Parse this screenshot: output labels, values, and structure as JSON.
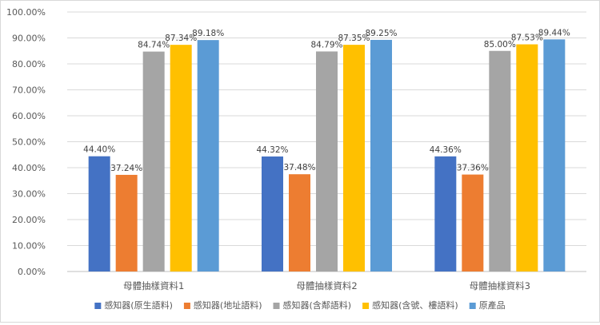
{
  "chart_data": {
    "type": "bar",
    "title": "",
    "xlabel": "",
    "ylabel": "",
    "categories": [
      "母體抽樣資料1",
      "母體抽樣資料2",
      "母體抽樣資料3"
    ],
    "ylim": [
      0,
      100
    ],
    "y_tick_step": 10,
    "y_tick_format": "percent_2dp",
    "grid": true,
    "legend_position": "bottom",
    "data_labels": true,
    "series": [
      {
        "name": "感知器(原生語料)",
        "color": "#4472c4",
        "values": [
          44.4,
          44.32,
          44.36
        ]
      },
      {
        "name": "感知器(地址語料)",
        "color": "#ed7d31",
        "values": [
          37.24,
          37.48,
          37.36
        ]
      },
      {
        "name": "感知器(含鄰語料)",
        "color": "#a5a5a5",
        "values": [
          84.74,
          84.79,
          85.0
        ]
      },
      {
        "name": "感知器(含號、樓語料)",
        "color": "#ffc000",
        "values": [
          87.34,
          87.35,
          87.53
        ]
      },
      {
        "name": "原產品",
        "color": "#5b9bd5",
        "values": [
          89.18,
          89.25,
          89.44
        ]
      }
    ]
  }
}
